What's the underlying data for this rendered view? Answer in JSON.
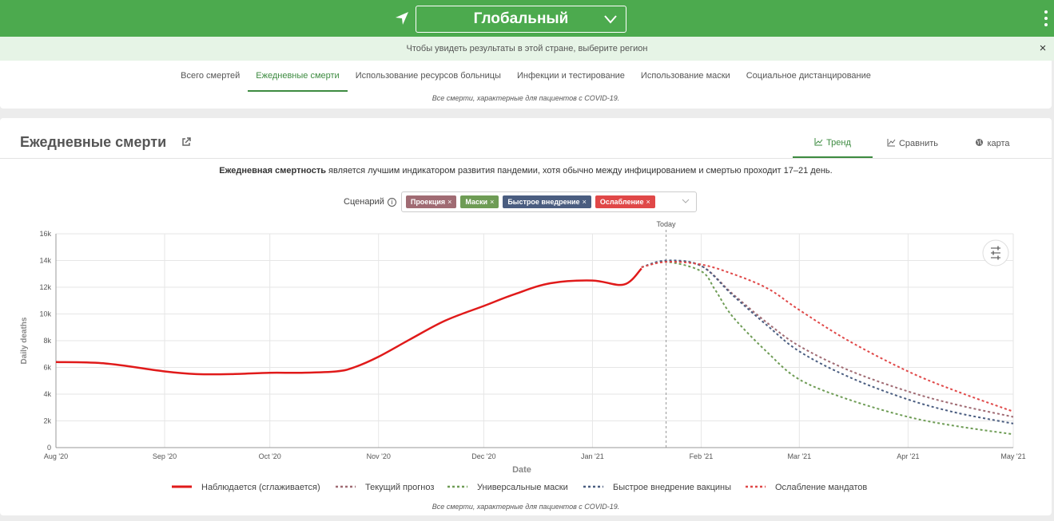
{
  "header": {
    "region": "Глобальный",
    "notice": "Чтобы увидеть результаты в этой стране, выберите регион",
    "close": "×"
  },
  "nav": {
    "tabs": [
      {
        "label": "Всего смертей"
      },
      {
        "label": "Ежедневные смерти"
      },
      {
        "label": "Использование ресурсов больницы"
      },
      {
        "label": "Инфекции и тестирование"
      },
      {
        "label": "Использование маски"
      },
      {
        "label": "Социальное дистанцирование"
      }
    ],
    "active_index": 1,
    "footnote": "Все смерти, характерные для пациентов с COVID-19."
  },
  "card": {
    "title": "Ежедневные смерти",
    "view_tabs": [
      {
        "label": "Тренд",
        "icon": "line-chart-icon"
      },
      {
        "label": "Сравнить",
        "icon": "compare-chart-icon"
      },
      {
        "label": "карта",
        "icon": "globe-icon"
      }
    ],
    "desc_bold": "Ежедневная смертность",
    "desc_rest": " является лучшим индикатором развития пандемии, хотя обычно между инфицированием и смертью проходит 17–21 день.",
    "scenario_label": "Сценарий",
    "info": "i",
    "chips": [
      {
        "label": "Проекция",
        "color": "#a06b73"
      },
      {
        "label": "Маски",
        "color": "#6e9c55"
      },
      {
        "label": "Быстрое внедрение",
        "color": "#4a5d80"
      },
      {
        "label": "Ослабление",
        "color": "#e04848"
      }
    ],
    "footnote": "Все смерти, характерные для пациентов с COVID-19."
  },
  "chart_data": {
    "type": "line",
    "title": "",
    "xlabel": "Date",
    "ylabel": "Daily deaths",
    "ylim": [
      0,
      16000
    ],
    "yticks": [
      "0",
      "2k",
      "4k",
      "6k",
      "8k",
      "10k",
      "12k",
      "14k",
      "16k"
    ],
    "xticks": [
      "Aug '20",
      "Sep '20",
      "Oct '20",
      "Nov '20",
      "Dec '20",
      "Jan '21",
      "Feb '21",
      "Mar '21",
      "Apr '21",
      "May '21"
    ],
    "xlim": [
      "2020-08-01",
      "2021-05-01"
    ],
    "today_label": "Today",
    "today": "2021-01-22",
    "grid": true,
    "legend_position": "bottom",
    "series": [
      {
        "name": "Наблюдается (сглаживается)",
        "color": "#e01a1a",
        "style": "solid",
        "x": [
          "2020-08-01",
          "2020-08-15",
          "2020-09-01",
          "2020-09-10",
          "2020-09-20",
          "2020-10-01",
          "2020-10-10",
          "2020-10-20",
          "2020-10-25",
          "2020-11-01",
          "2020-11-10",
          "2020-11-20",
          "2020-12-01",
          "2020-12-10",
          "2020-12-20",
          "2021-01-01",
          "2021-01-10",
          "2021-01-15"
        ],
        "y": [
          6400,
          6300,
          5700,
          5500,
          5500,
          5600,
          5600,
          5700,
          6000,
          6800,
          8100,
          9500,
          10600,
          11500,
          12300,
          12500,
          12200,
          13400
        ]
      },
      {
        "name": "Текущий прогноз",
        "color": "#a06b73",
        "style": "dashed",
        "x": [
          "2021-01-15",
          "2021-01-22",
          "2021-02-01",
          "2021-02-10",
          "2021-02-20",
          "2021-03-01",
          "2021-03-15",
          "2021-04-01",
          "2021-04-15",
          "2021-05-01"
        ],
        "y": [
          13500,
          13900,
          13600,
          11500,
          9300,
          7600,
          5800,
          4200,
          3200,
          2300
        ]
      },
      {
        "name": "Универсальные маски",
        "color": "#6e9c55",
        "style": "dashed",
        "x": [
          "2021-01-15",
          "2021-01-22",
          "2021-02-01",
          "2021-02-05",
          "2021-02-10",
          "2021-02-20",
          "2021-03-01",
          "2021-03-15",
          "2021-04-01",
          "2021-04-15",
          "2021-05-01"
        ],
        "y": [
          13500,
          13900,
          13200,
          11800,
          9800,
          7100,
          5100,
          3600,
          2300,
          1600,
          1000
        ]
      },
      {
        "name": "Быстрое внедрение вакцины",
        "color": "#4a5d80",
        "style": "dashed",
        "x": [
          "2021-01-15",
          "2021-01-22",
          "2021-02-01",
          "2021-02-10",
          "2021-02-20",
          "2021-03-01",
          "2021-03-15",
          "2021-04-01",
          "2021-04-15",
          "2021-05-01"
        ],
        "y": [
          13500,
          14000,
          13600,
          11400,
          9100,
          7200,
          5300,
          3600,
          2600,
          1800
        ]
      },
      {
        "name": "Ослабление мандатов",
        "color": "#e04848",
        "style": "dashed",
        "x": [
          "2021-01-15",
          "2021-01-22",
          "2021-02-01",
          "2021-02-10",
          "2021-02-20",
          "2021-03-01",
          "2021-03-15",
          "2021-04-01",
          "2021-04-15",
          "2021-05-01"
        ],
        "y": [
          13500,
          13900,
          13700,
          13000,
          11900,
          10300,
          8000,
          5700,
          4200,
          2700
        ]
      }
    ]
  }
}
